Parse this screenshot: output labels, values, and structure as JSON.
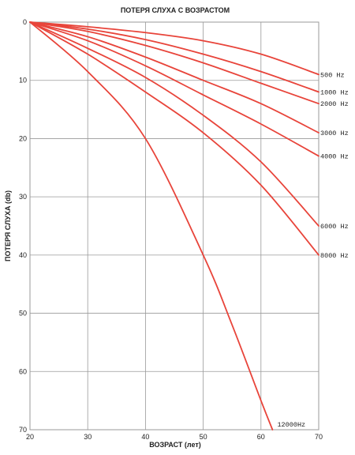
{
  "chart_data": {
    "type": "line",
    "title": "ПОТЕРЯ СЛУХА С ВОЗРАСТОМ",
    "xlabel": "ВОЗРАСТ (лет)",
    "ylabel": "ПОТЕРЯ СЛУХА (db)",
    "xlim": [
      20,
      70
    ],
    "ylim": [
      0,
      70
    ],
    "y_inverted": true,
    "grid": true,
    "x_ticks": [
      "20",
      "30",
      "40",
      "50",
      "60",
      "70"
    ],
    "y_ticks": [
      "0",
      "10",
      "20",
      "30",
      "40",
      "50",
      "60",
      "70"
    ],
    "line_color": "#e8443a",
    "grid_color": "#9a9a9a",
    "series": [
      {
        "name": "500 Hz",
        "x": [
          20,
          30,
          40,
          50,
          60,
          70
        ],
        "y": [
          0,
          0.8,
          1.8,
          3.2,
          5.5,
          9
        ]
      },
      {
        "name": "1000 Hz",
        "x": [
          20,
          30,
          40,
          50,
          60,
          70
        ],
        "y": [
          0,
          1.2,
          3.0,
          5.5,
          8.5,
          12
        ]
      },
      {
        "name": "2000 Hz",
        "x": [
          20,
          30,
          40,
          50,
          60,
          70
        ],
        "y": [
          0,
          1.6,
          4.0,
          7.0,
          10.5,
          14
        ]
      },
      {
        "name": "3000 Hz",
        "x": [
          20,
          30,
          40,
          50,
          60,
          70
        ],
        "y": [
          0,
          2.5,
          6.0,
          10.0,
          14.0,
          19
        ]
      },
      {
        "name": "4000 Hz",
        "x": [
          20,
          30,
          40,
          50,
          60,
          70
        ],
        "y": [
          0,
          3.2,
          7.5,
          12.5,
          17.5,
          23
        ]
      },
      {
        "name": "6000 Hz",
        "x": [
          20,
          30,
          40,
          50,
          60,
          70
        ],
        "y": [
          0,
          4.5,
          9.5,
          16.0,
          24.0,
          35
        ]
      },
      {
        "name": "8000 Hz",
        "x": [
          20,
          30,
          40,
          50,
          60,
          70
        ],
        "y": [
          0,
          5.5,
          12.0,
          19.0,
          28.0,
          40
        ]
      },
      {
        "name": "12000Hz",
        "x": [
          20,
          30,
          40,
          50,
          55,
          60,
          62
        ],
        "y": [
          0,
          8.5,
          20.0,
          40.0,
          52.0,
          65.0,
          70.0
        ]
      }
    ]
  }
}
